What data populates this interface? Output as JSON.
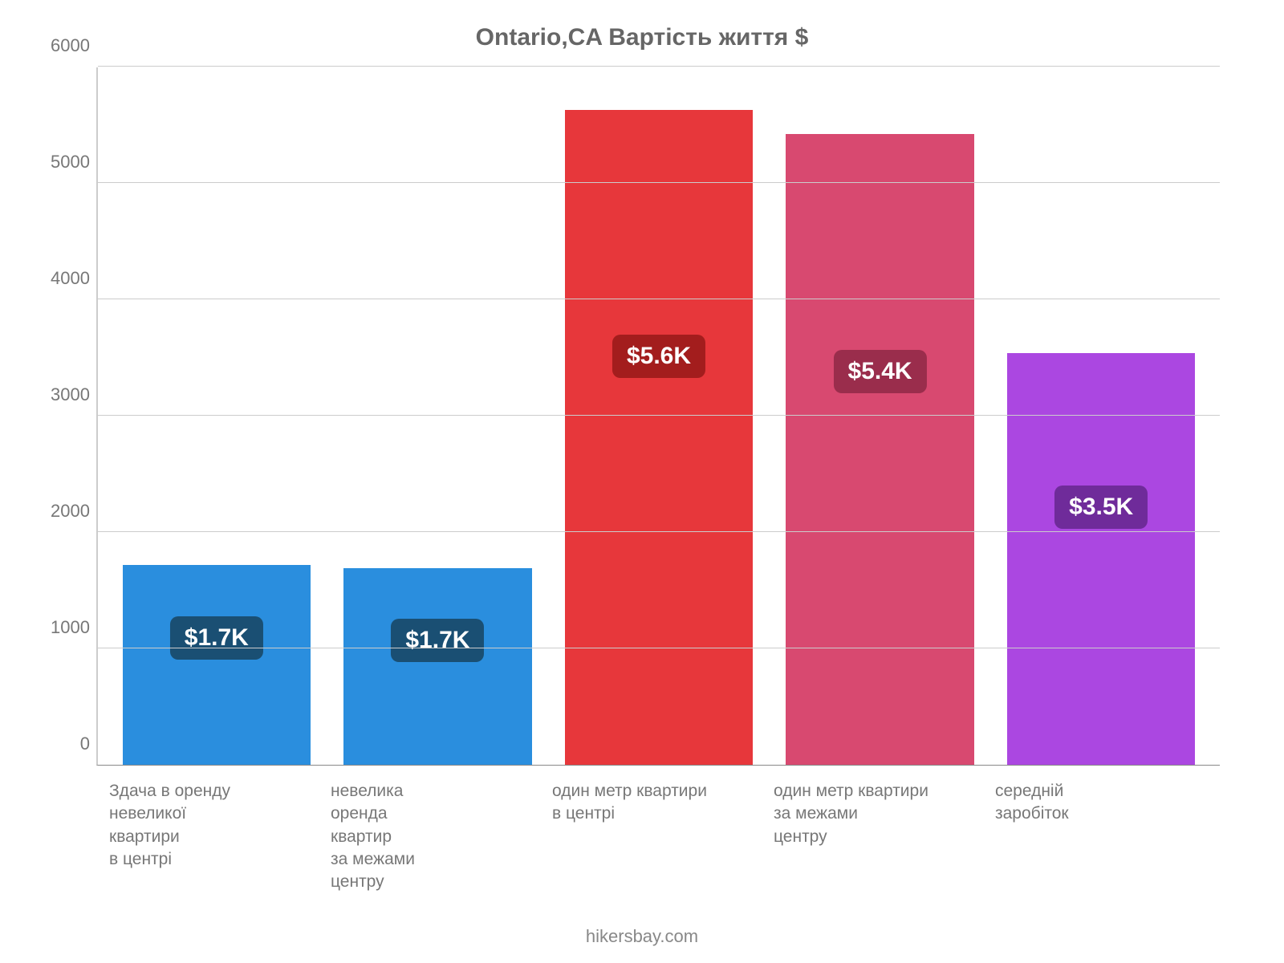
{
  "chart": {
    "type": "bar",
    "title": "Ontario,CA Вартість життя $",
    "title_fontsize": 30,
    "title_color": "#666666",
    "background_color": "#ffffff",
    "axis_color": "#cccccc",
    "tick_color": "#777777",
    "tick_fontsize": 22,
    "label_fontsize": 21,
    "label_color": "#777777",
    "badge_fontsize": 30,
    "y": {
      "min": 0,
      "max": 6000,
      "step": 1000
    },
    "y_ticks": [
      "0",
      "1000",
      "2000",
      "3000",
      "4000",
      "5000",
      "6000"
    ],
    "grid_color": "#cccccc",
    "bar_width_ratio": 0.85,
    "categories": [
      "Здача в оренду\nневеликої\nквартири\nв центрі",
      "невелика\nоренда\nквартир\nза межами\nцентру",
      "один метр квартири\nв центрі",
      "один метр квартири\nза межами\nцентру",
      "середній\nзаробіток"
    ],
    "values": [
      1720,
      1690,
      5630,
      5420,
      3540
    ],
    "bar_colors": [
      "#2a8ede",
      "#2a8ede",
      "#e7373b",
      "#d84970",
      "#ab47e1"
    ],
    "badges": [
      "$1.7K",
      "$1.7K",
      "$5.6K",
      "$5.4K",
      "$3.5K"
    ],
    "badge_bg_colors": [
      "#1a4f73",
      "#1a4f73",
      "#a31d1d",
      "#9a2d4c",
      "#6f2b9a"
    ],
    "badge_text_color": "#ffffff",
    "attribution": "hikersbay.com",
    "attribution_color": "#888888",
    "attribution_fontsize": 22
  }
}
